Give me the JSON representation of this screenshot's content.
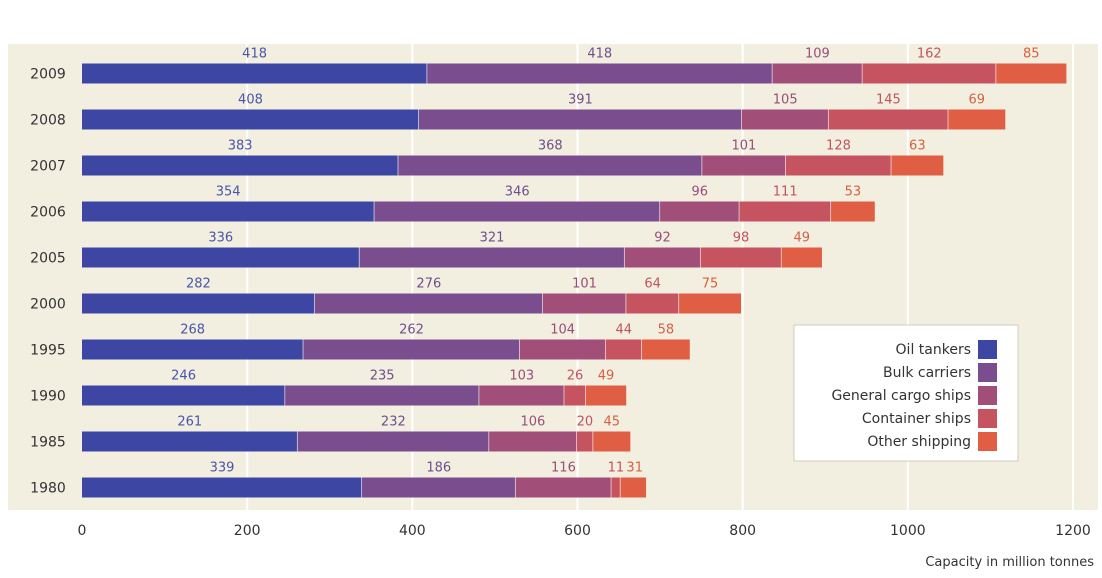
{
  "chart_data": {
    "type": "bar",
    "orientation": "horizontal",
    "stacked": true,
    "categories": [
      "2009",
      "2008",
      "2007",
      "2006",
      "2005",
      "2000",
      "1995",
      "1990",
      "1985",
      "1980"
    ],
    "series": [
      {
        "name": "Oil tankers",
        "color": "#3d47a3",
        "label_color": "#4a55a8",
        "values": [
          418,
          408,
          383,
          354,
          336,
          282,
          268,
          246,
          261,
          339
        ]
      },
      {
        "name": "Bulk carriers",
        "color": "#7a4d8f",
        "label_color": "#6f4f8c",
        "values": [
          418,
          391,
          368,
          346,
          321,
          276,
          262,
          235,
          232,
          186
        ]
      },
      {
        "name": "General cargo ships",
        "color": "#a14e78",
        "label_color": "#9a4d78",
        "values": [
          109,
          105,
          101,
          96,
          92,
          101,
          104,
          103,
          106,
          116
        ]
      },
      {
        "name": "Container ships",
        "color": "#c65360",
        "label_color": "#c3535f",
        "values": [
          162,
          145,
          128,
          111,
          98,
          64,
          44,
          26,
          20,
          11
        ]
      },
      {
        "name": "Other shipping",
        "color": "#e05f44",
        "label_color": "#d8603f",
        "values": [
          85,
          69,
          63,
          53,
          49,
          75,
          58,
          49,
          45,
          31
        ]
      }
    ],
    "x_ticks": [
      0,
      200,
      400,
      600,
      800,
      1000,
      1200
    ],
    "xlim": [
      0,
      1200
    ],
    "xlabel": "Capacity in million tonnes",
    "grid": true,
    "legend_position": "right",
    "colors": {
      "panel": "#f2efe1",
      "gridline": "#ffffff",
      "axis_text": "#333333"
    }
  }
}
